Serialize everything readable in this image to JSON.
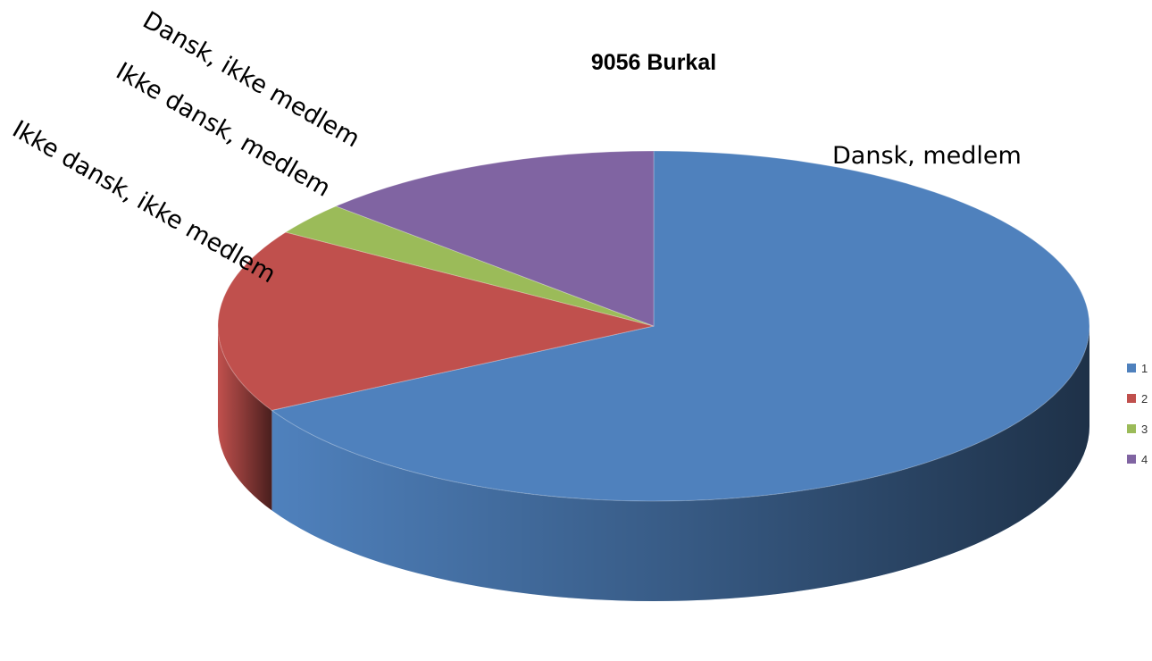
{
  "chart_data": {
    "type": "pie",
    "title": "9056 Burkal",
    "style": "3d",
    "categories": [
      "1",
      "2",
      "3",
      "4"
    ],
    "values": [
      67,
      17,
      3,
      13
    ],
    "slice_labels": [
      "Dansk, medlem",
      "Ikke dansk, ikke medlem",
      "Ikke dansk, medlem",
      "Dansk, ikke medlem"
    ],
    "colors": [
      "#4f81bd",
      "#c0504d",
      "#9bbb59",
      "#8064a2"
    ],
    "legend": {
      "position": "right",
      "entries": [
        "1",
        "2",
        "3",
        "4"
      ]
    }
  }
}
